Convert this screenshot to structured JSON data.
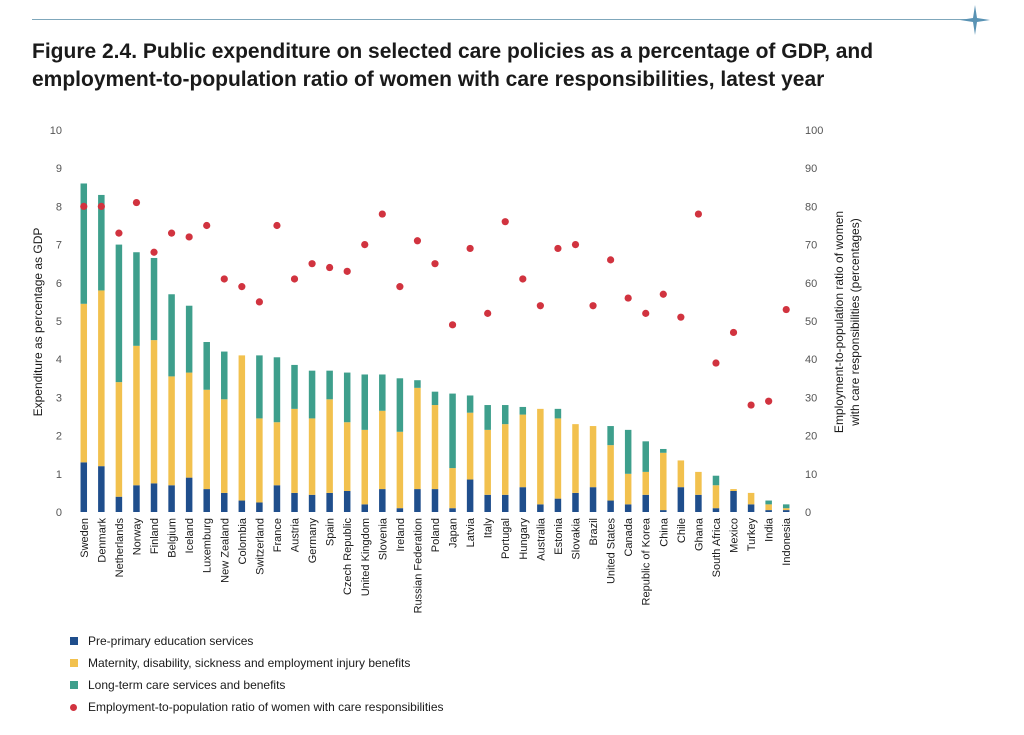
{
  "figure": {
    "title_line1": "Figure 2.4. Public expenditure on selected care policies as a percentage of GDP, and",
    "title_line2": "employment-to-population ratio of women with care responsibilities, latest year"
  },
  "colors": {
    "preprimary": "#1f4e8c",
    "maternity": "#f2c14e",
    "ltc": "#3e9f8c",
    "employment": "#d1333f",
    "accent_rule": "#7fa7bb"
  },
  "chart_data": {
    "type": "bar",
    "stacked": true,
    "title": "Figure 2.4. Public expenditure on selected care policies as a percentage of GDP, and employment-to-population ratio of women with care responsibilities, latest year",
    "ylabel": "Expenditure as percentage as GDP",
    "y2label_line1": "Employment-to-population ratio of women",
    "y2label_line2": "with care responsibilities (percentages)",
    "ylim": [
      0,
      10
    ],
    "y2lim": [
      0,
      100
    ],
    "yticks": [
      0,
      1,
      2,
      3,
      4,
      5,
      6,
      7,
      8,
      9,
      10
    ],
    "y2ticks": [
      0,
      10,
      20,
      30,
      40,
      50,
      60,
      70,
      80,
      90,
      100
    ],
    "grid": false,
    "legend_position": "bottom-left",
    "categories": [
      "Sweden",
      "Denmark",
      "Netherlands",
      "Norway",
      "Finland",
      "Belgium",
      "Iceland",
      "Luxemburg",
      "New Zealand",
      "Colombia",
      "Switzerland",
      "France",
      "Austria",
      "Germany",
      "Spain",
      "Czech Republic",
      "United Kingdom",
      "Slovenia",
      "Ireland",
      "Russian Federation",
      "Poland",
      "Japan",
      "Latvia",
      "Italy",
      "Portugal",
      "Hungary",
      "Australia",
      "Estonia",
      "Slovakia",
      "Brazil",
      "United States",
      "Canada",
      "Republic of Korea",
      "China",
      "Chile",
      "Ghana",
      "South Africa",
      "Mexico",
      "Turkey",
      "India",
      "Indonesia"
    ],
    "series": [
      {
        "name": "Pre-primary education services",
        "color_key": "preprimary",
        "axis": "left",
        "values": [
          1.3,
          1.2,
          0.4,
          0.7,
          0.75,
          0.7,
          0.9,
          0.6,
          0.5,
          0.3,
          0.25,
          0.7,
          0.5,
          0.45,
          0.5,
          0.55,
          0.2,
          0.6,
          0.1,
          0.6,
          0.6,
          0.1,
          0.85,
          0.45,
          0.45,
          0.65,
          0.2,
          0.35,
          0.5,
          0.65,
          0.3,
          0.2,
          0.45,
          0.05,
          0.65,
          0.45,
          0.1,
          0.55,
          0.2,
          0.05,
          0.05
        ]
      },
      {
        "name": "Maternity, disability, sickness and employment injury benefits",
        "color_key": "maternity",
        "axis": "left",
        "values": [
          4.15,
          4.6,
          3.0,
          3.65,
          3.75,
          2.85,
          2.75,
          2.6,
          2.45,
          3.8,
          2.2,
          1.65,
          2.2,
          2.0,
          2.45,
          1.8,
          1.95,
          2.05,
          2.0,
          2.65,
          2.2,
          1.05,
          1.75,
          1.7,
          1.85,
          1.9,
          2.5,
          2.1,
          1.8,
          1.6,
          1.45,
          0.8,
          0.6,
          1.5,
          0.7,
          0.6,
          0.6,
          0.05,
          0.3,
          0.15,
          0.05
        ]
      },
      {
        "name": "Long-term care services and benefits",
        "color_key": "ltc",
        "axis": "left",
        "values": [
          3.15,
          2.5,
          3.6,
          2.45,
          2.15,
          2.15,
          1.75,
          1.25,
          1.25,
          0.0,
          1.65,
          1.7,
          1.15,
          1.25,
          0.75,
          1.3,
          1.45,
          0.95,
          1.4,
          0.2,
          0.35,
          1.95,
          0.45,
          0.65,
          0.5,
          0.2,
          0.0,
          0.25,
          0.0,
          0.0,
          0.5,
          1.15,
          0.8,
          0.1,
          0.0,
          0.0,
          0.25,
          0.0,
          0.0,
          0.1,
          0.1
        ]
      },
      {
        "name": "Employment-to-population ratio of women with care responsibilities",
        "color_key": "employment",
        "axis": "right",
        "type": "scatter",
        "values": [
          80,
          80,
          73,
          81,
          68,
          73,
          72,
          75,
          61,
          59,
          55,
          75,
          61,
          65,
          64,
          63,
          70,
          78,
          59,
          71,
          65,
          49,
          69,
          52,
          76,
          61,
          54,
          69,
          70,
          54,
          66,
          56,
          52,
          57,
          51,
          78,
          39,
          47,
          28,
          29,
          53
        ]
      }
    ]
  },
  "legend": [
    {
      "label": "Pre-primary education services",
      "color_key": "preprimary",
      "shape": "square"
    },
    {
      "label": "Maternity, disability, sickness and employment injury benefits",
      "color_key": "maternity",
      "shape": "square"
    },
    {
      "label": "Long-term care services and benefits",
      "color_key": "ltc",
      "shape": "square"
    },
    {
      "label": "Employment-to-population ratio of women with care responsibilities",
      "color_key": "employment",
      "shape": "circle"
    }
  ]
}
